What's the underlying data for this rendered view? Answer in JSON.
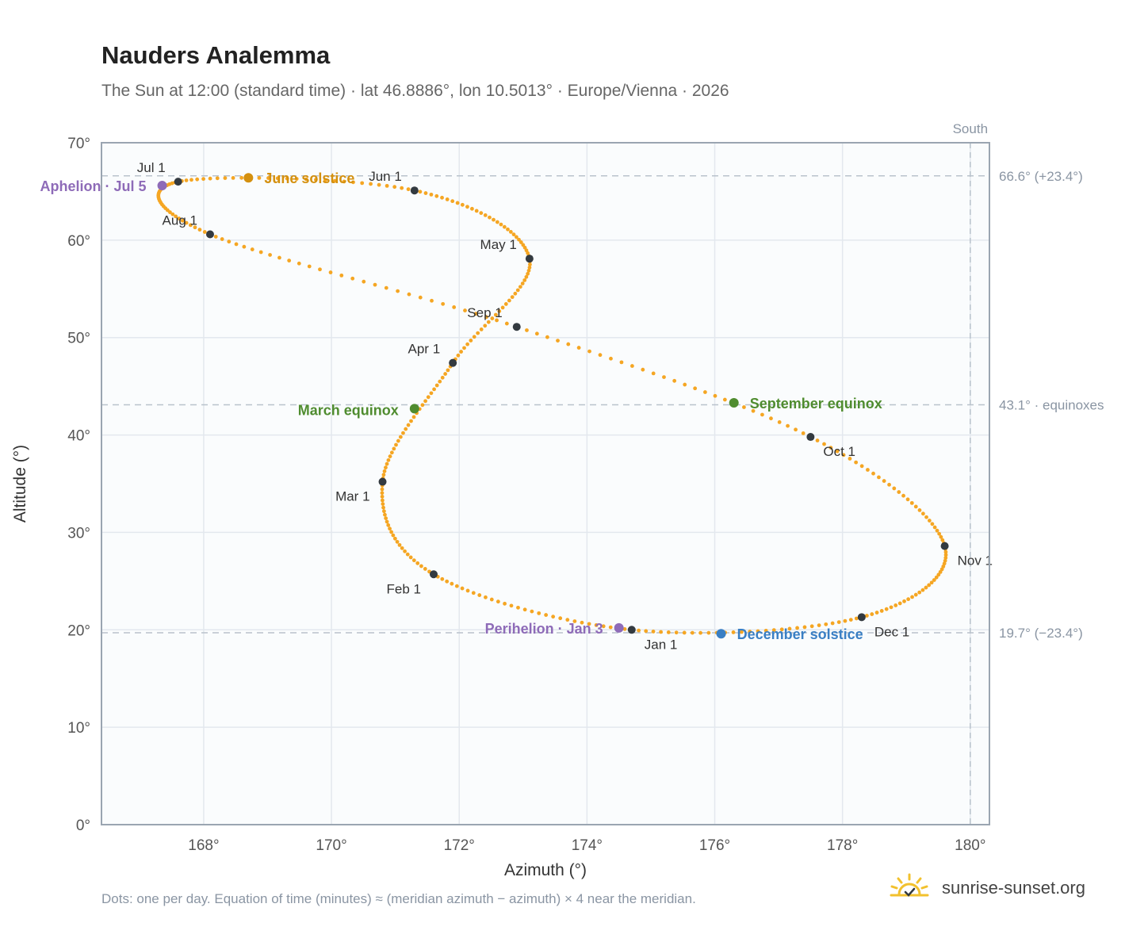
{
  "header": {
    "title": "Nauders Analemma",
    "subtitle": "The Sun at 12:00 (standard time) · lat 46.8886°, lon 10.5013° · Europe/Vienna · 2026"
  },
  "footer": {
    "note": "Dots: one per day. Equation of time (minutes) ≈ (meridian azimuth − azimuth) × 4 near the meridian.",
    "brand": "sunrise-sunset.org"
  },
  "colors": {
    "trace": "#f5a623",
    "month_dot": "#333a40",
    "june_solstice": "#d4900f",
    "december_solstice": "#3a7fc4",
    "equinox": "#4f8c2f",
    "apsis": "#8e6bb8",
    "grid": "#e3e8ee",
    "ref_line": "#b9c2cc",
    "plot_bg": "#fafcfd",
    "frame": "#9aa5b1"
  },
  "chart_data": {
    "type": "scatter",
    "xlabel": "Azimuth (°)",
    "ylabel": "Altitude (°)",
    "xlim": [
      166.4,
      180.3
    ],
    "ylim": [
      0,
      70
    ],
    "x_ticks": [
      168,
      170,
      172,
      174,
      176,
      178,
      180
    ],
    "y_ticks": [
      0,
      10,
      20,
      30,
      40,
      50,
      60,
      70
    ],
    "grid": true,
    "meridian": {
      "azimuth": 180,
      "label": "South"
    },
    "reference_lines": [
      {
        "altitude": 66.6,
        "label": "66.6° (+23.4°)"
      },
      {
        "altitude": 43.1,
        "label": "43.1° · equinoxes"
      },
      {
        "altitude": 19.7,
        "label": "19.7° (−23.4°)"
      }
    ],
    "months": [
      {
        "label": "Jan 1",
        "az": 174.7,
        "alt": 20.0
      },
      {
        "label": "Feb 1",
        "az": 171.6,
        "alt": 25.7
      },
      {
        "label": "Mar 1",
        "az": 170.8,
        "alt": 35.2
      },
      {
        "label": "Apr 1",
        "az": 171.9,
        "alt": 47.4
      },
      {
        "label": "May 1",
        "az": 173.1,
        "alt": 58.1
      },
      {
        "label": "Jun 1",
        "az": 171.3,
        "alt": 65.1
      },
      {
        "label": "Jul 1",
        "az": 167.6,
        "alt": 66.0
      },
      {
        "label": "Aug 1",
        "az": 168.1,
        "alt": 60.6
      },
      {
        "label": "Sep 1",
        "az": 172.9,
        "alt": 51.1
      },
      {
        "label": "Oct 1",
        "az": 177.5,
        "alt": 39.8
      },
      {
        "label": "Nov 1",
        "az": 179.6,
        "alt": 28.6
      },
      {
        "label": "Dec 1",
        "az": 178.3,
        "alt": 21.3
      }
    ],
    "events": [
      {
        "label": "June solstice",
        "az": 168.7,
        "alt": 66.4,
        "color_key": "june_solstice"
      },
      {
        "label": "December solstice",
        "az": 176.1,
        "alt": 19.6,
        "color_key": "december_solstice"
      },
      {
        "label": "March equinox",
        "az": 171.3,
        "alt": 42.7,
        "color_key": "equinox"
      },
      {
        "label": "September equinox",
        "az": 176.3,
        "alt": 43.3,
        "color_key": "equinox"
      },
      {
        "label": "Perihelion · Jan 3",
        "az": 174.5,
        "alt": 20.2,
        "color_key": "apsis"
      },
      {
        "label": "Aphelion · Jul 5",
        "az": 167.35,
        "alt": 65.6,
        "color_key": "apsis"
      }
    ]
  }
}
